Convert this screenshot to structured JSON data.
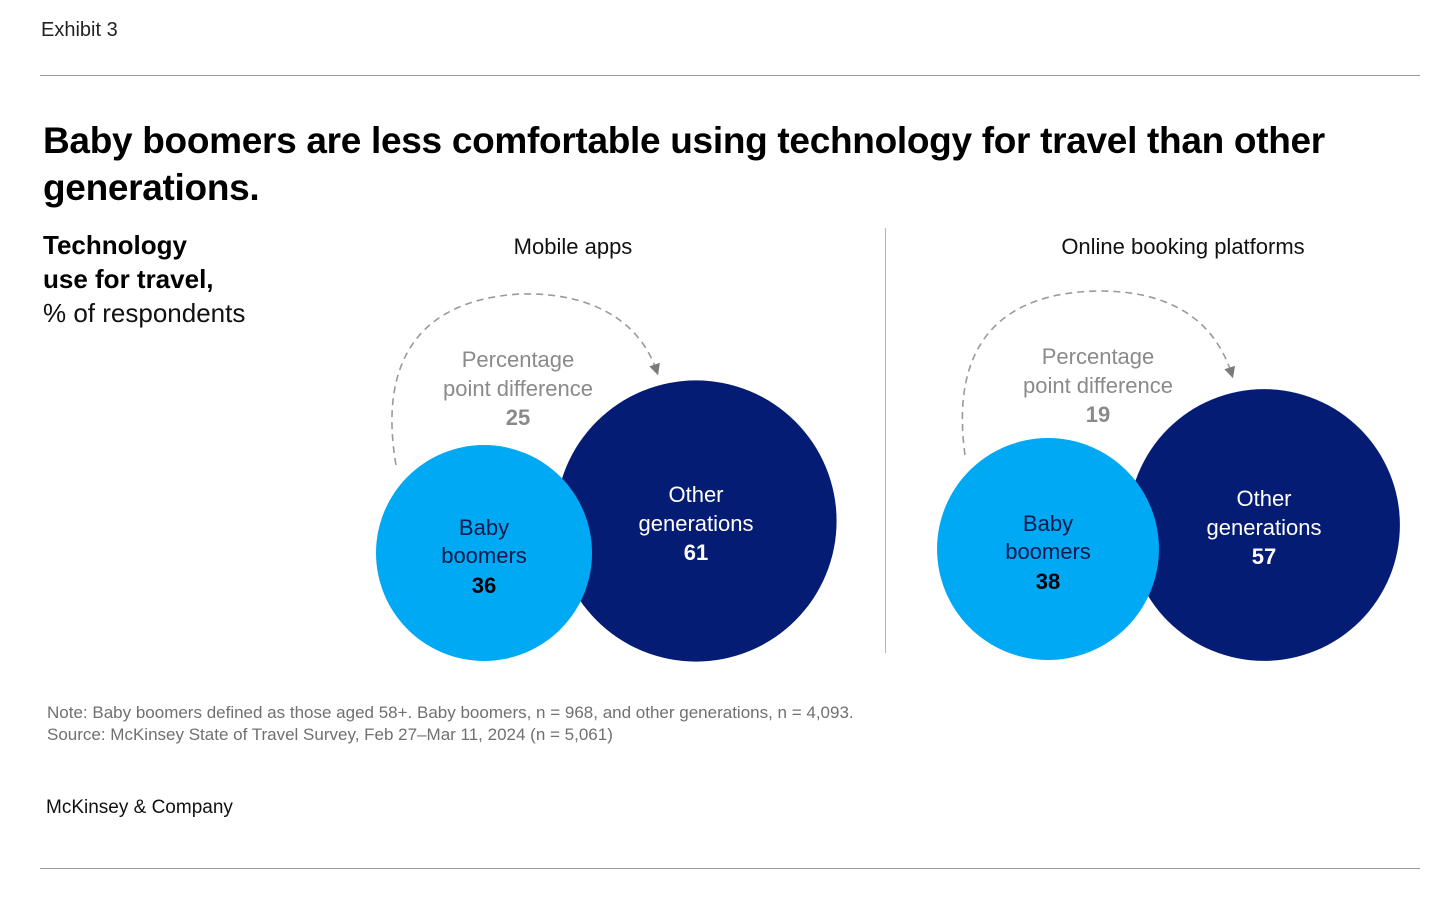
{
  "exhibit_label": "Exhibit 3",
  "headline": "Baby boomers are less comfortable using technology for travel than other generations.",
  "subtitle": {
    "line1": "Technology",
    "line2": "use for travel,",
    "line3": "% of respondents"
  },
  "colors": {
    "baby_boomers": "#00A9F4",
    "other_generations": "#051C74",
    "annotation": "#8a8a8a"
  },
  "chart_data": [
    {
      "type": "bubble",
      "title": "Mobile apps",
      "series": [
        {
          "name": "Baby boomers",
          "label_line1": "Baby",
          "label_line2": "boomers",
          "value": 36
        },
        {
          "name": "Other generations",
          "label_line1": "Other",
          "label_line2": "generations",
          "value": 61
        }
      ],
      "annotation": {
        "line1": "Percentage",
        "line2": "point difference",
        "value": 25
      }
    },
    {
      "type": "bubble",
      "title": "Online booking platforms",
      "series": [
        {
          "name": "Baby boomers",
          "label_line1": "Baby",
          "label_line2": "boomers",
          "value": 38
        },
        {
          "name": "Other generations",
          "label_line1": "Other",
          "label_line2": "generations",
          "value": 57
        }
      ],
      "annotation": {
        "line1": "Percentage",
        "line2": "point difference",
        "value": 19
      }
    }
  ],
  "note": "Note: Baby boomers defined as those aged 58+. Baby boomers, n = 968, and other generations, n = 4,093.",
  "source": "Source: McKinsey State of Travel Survey, Feb 27–Mar 11, 2024 (n = 5,061)",
  "brand": "McKinsey & Company"
}
